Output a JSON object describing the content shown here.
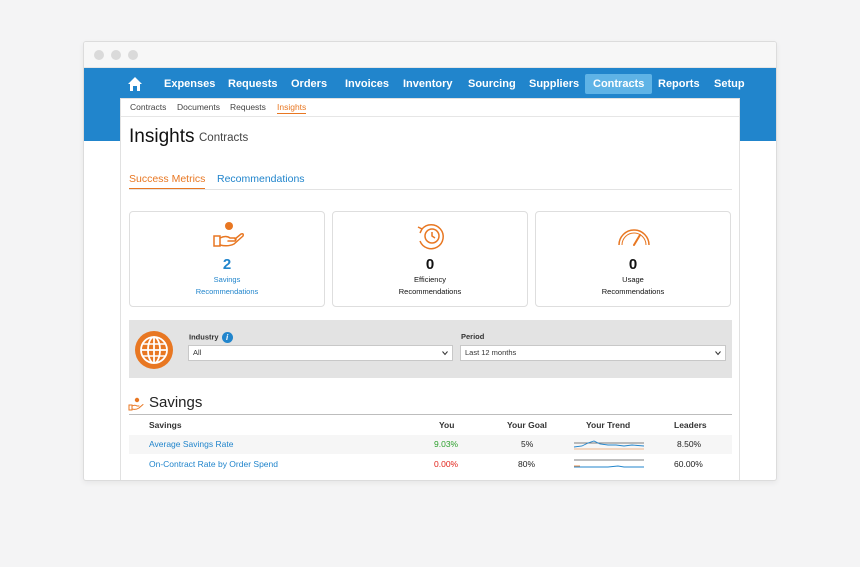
{
  "nav": {
    "items": [
      "Expenses",
      "Requests",
      "Orders",
      "Invoices",
      "Inventory",
      "Sourcing",
      "Suppliers",
      "Contracts",
      "Reports",
      "Setup"
    ],
    "active": "Contracts",
    "icons": {
      "home": "home-icon"
    }
  },
  "subnav": {
    "items": [
      "Contracts",
      "Documents",
      "Requests",
      "Insights"
    ],
    "active": "Insights"
  },
  "page": {
    "title": "Insights",
    "subtitle": "Contracts"
  },
  "tabs": {
    "items": [
      "Success Metrics",
      "Recommendations"
    ],
    "active": "Success Metrics"
  },
  "cards": [
    {
      "value": "2",
      "label1": "Savings",
      "label2": "Recommendations",
      "icon": "hand-coin-icon"
    },
    {
      "value": "0",
      "label1": "Efficiency",
      "label2": "Recommendations",
      "icon": "clock-refresh-icon"
    },
    {
      "value": "0",
      "label1": "Usage",
      "label2": "Recommendations",
      "icon": "gauge-icon"
    }
  ],
  "filters": {
    "industry": {
      "label": "Industry",
      "value": "All"
    },
    "period": {
      "label": "Period",
      "value": "Last 12 months"
    }
  },
  "savings": {
    "title": "Savings",
    "headers": {
      "metric": "Savings",
      "you": "You",
      "goal": "Your Goal",
      "trend": "Your Trend",
      "leaders": "Leaders"
    },
    "rows": [
      {
        "metric": "Average Savings Rate",
        "you": "9.03%",
        "goal": "5%",
        "leaders": "8.50%"
      },
      {
        "metric": "On-Contract Rate by Order Spend",
        "you": "0.00%",
        "goal": "80%",
        "leaders": "60.00%"
      }
    ]
  },
  "colors": {
    "brand_blue": "#2185cc",
    "accent_orange": "#e87722",
    "positive": "#2ca02c",
    "negative": "#e2231a"
  }
}
